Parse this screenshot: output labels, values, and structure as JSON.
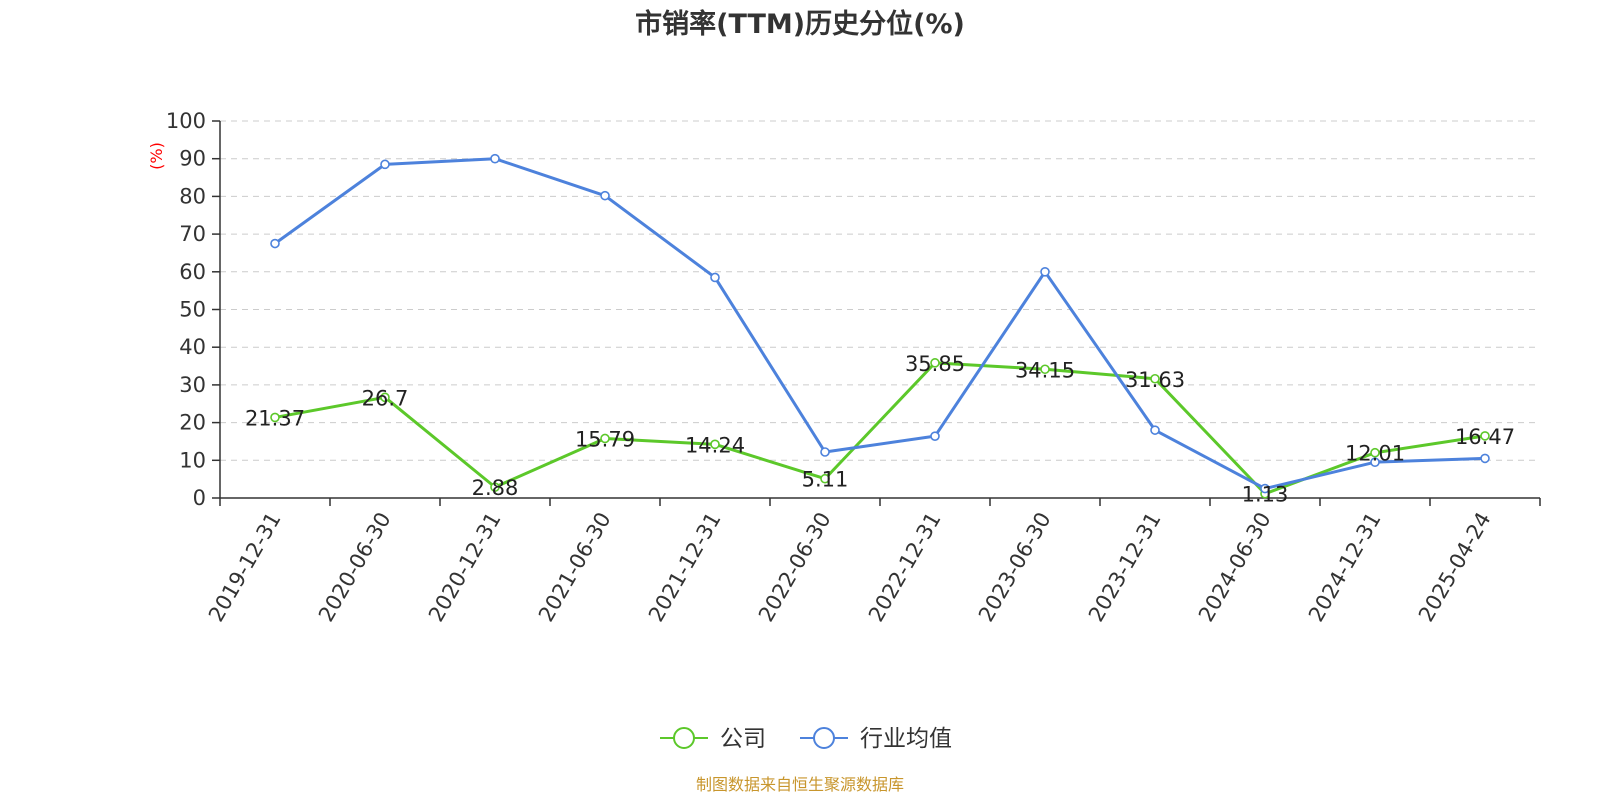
{
  "chart_data": {
    "type": "line",
    "title": "市销率(TTM)历史分位(%)",
    "ylabel": "(%)",
    "xlabel": "",
    "ylim": [
      0,
      100
    ],
    "yticks": [
      0,
      10,
      20,
      30,
      40,
      50,
      60,
      70,
      80,
      90,
      100
    ],
    "grid": true,
    "legend_position": "bottom-center",
    "categories": [
      "2019-12-31",
      "2020-06-30",
      "2020-12-31",
      "2021-06-30",
      "2021-12-31",
      "2022-06-30",
      "2022-12-31",
      "2023-06-30",
      "2023-12-31",
      "2024-06-30",
      "2024-12-31",
      "2025-04-24"
    ],
    "series": [
      {
        "name": "公司",
        "color": "#5cc82a",
        "values": [
          21.37,
          26.7,
          2.88,
          15.79,
          14.24,
          5.11,
          35.85,
          34.15,
          31.63,
          1.13,
          12.01,
          16.47
        ],
        "labels": [
          "21.37",
          "26.7",
          "2.88",
          "15.79",
          "14.24",
          "5.11",
          "35.85",
          "34.15",
          "31.63",
          "1.13",
          "12.01",
          "16.47"
        ]
      },
      {
        "name": "行业均值",
        "color": "#4d82dc",
        "values": [
          67.5,
          88.5,
          90.0,
          80.2,
          58.5,
          12.2,
          16.4,
          60.0,
          18.0,
          2.5,
          9.5,
          10.5
        ]
      }
    ]
  },
  "source": "制图数据来自恒生聚源数据库"
}
